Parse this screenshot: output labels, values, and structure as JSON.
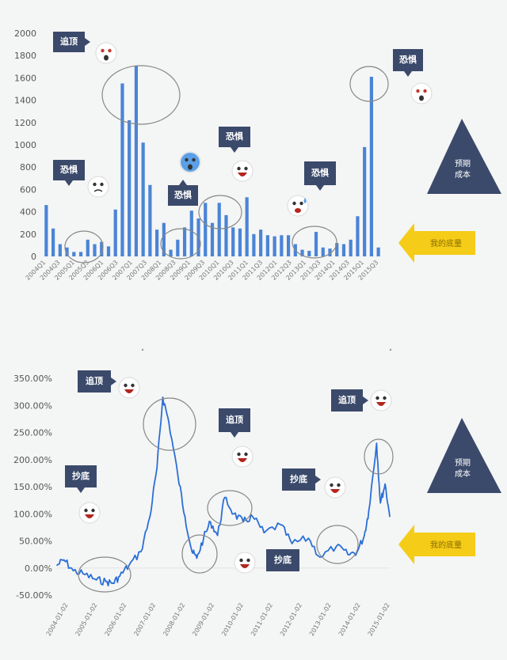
{
  "chart_data": [
    {
      "type": "bar",
      "ylim": [
        0,
        2000
      ],
      "yticks": [
        "2000",
        "1800",
        "1600",
        "1400",
        "1200",
        "1000",
        "800",
        "600",
        "400",
        "200",
        "0"
      ],
      "xticklabels": [
        "2004Q1",
        "2004Q3",
        "2005Q1",
        "2005Q3",
        "2006Q1",
        "2006Q3",
        "2007Q1",
        "2007Q3",
        "2008Q1",
        "2008Q3",
        "2009Q1",
        "2009Q3",
        "2010Q1",
        "2010Q3",
        "2011Q1",
        "2011Q3",
        "2012Q1",
        "2012Q3",
        "2013Q1",
        "2013Q3",
        "2014Q1",
        "2014Q3",
        "2015Q1",
        "2015Q3"
      ],
      "values": [
        460,
        250,
        110,
        80,
        40,
        40,
        150,
        110,
        130,
        90,
        420,
        1550,
        1220,
        1710,
        1020,
        640,
        240,
        300,
        60,
        150,
        260,
        410,
        340,
        480,
        300,
        480,
        370,
        260,
        250,
        530,
        200,
        240,
        190,
        180,
        190,
        190,
        110,
        60,
        50,
        220,
        80,
        70,
        120,
        110,
        150,
        360,
        980,
        1610,
        80
      ],
      "color": "#4a84d6",
      "annotations": [
        {
          "label": "追顶",
          "emoji": "shocked-face"
        },
        {
          "label": "恐惧",
          "emoji": "sad-face"
        },
        {
          "label": "恐惧",
          "emoji": "crying-face"
        },
        {
          "label": "恐惧",
          "emoji": "screaming-face"
        },
        {
          "label": "恐惧",
          "emoji": "sweating-face"
        },
        {
          "label": "恐惧",
          "emoji": "shocked-face"
        }
      ],
      "side_shapes": {
        "triangle_text": "预期\n成本",
        "arrow_text": "我的底量"
      }
    },
    {
      "type": "line",
      "ylim": [
        -0.5,
        3.5
      ],
      "yticks": [
        "350.00%",
        "300.00%",
        "250.00%",
        "200.00%",
        "150.00%",
        "100.00%",
        "50.00%",
        "0.00%",
        "-50.00%"
      ],
      "xticklabels": [
        "2004-01-02",
        "2005-01-02",
        "2006-01-02",
        "2007-01-02",
        "2008-01-02",
        "2009-01-02",
        "2010-01-02",
        "2011-01-02",
        "2012-01-02",
        "2013-01-02",
        "2014-01-02",
        "2015-01-02"
      ],
      "series": [
        {
          "x": [
            "2004-01-02",
            "2004-04-01",
            "2004-08-01",
            "2005-01-02",
            "2005-06-01",
            "2005-10-01",
            "2006-01-02",
            "2006-04-01",
            "2006-08-01",
            "2007-01-02",
            "2007-05-01",
            "2007-08-01",
            "2007-10-16",
            "2008-01-02",
            "2008-05-01",
            "2008-08-01",
            "2008-11-01",
            "2009-01-02",
            "2009-04-01",
            "2009-07-01",
            "2009-10-01",
            "2010-01-02",
            "2010-05-01",
            "2010-09-01",
            "2011-01-02",
            "2011-06-01",
            "2012-01-02",
            "2012-06-01",
            "2013-01-02",
            "2013-06-01",
            "2014-01-02",
            "2014-06-01",
            "2014-10-01",
            "2015-01-02",
            "2015-03-01",
            "2015-06-12",
            "2015-08-01",
            "2015-10-01",
            "2015-12-01"
          ],
          "y": [
            0.05,
            0.15,
            -0.05,
            -0.12,
            -0.22,
            -0.25,
            -0.28,
            -0.15,
            0.05,
            0.3,
            0.95,
            1.85,
            3.15,
            2.7,
            1.7,
            0.95,
            0.3,
            0.18,
            0.55,
            0.85,
            0.6,
            1.3,
            1.0,
            0.85,
            0.95,
            0.65,
            0.8,
            0.45,
            0.55,
            0.2,
            0.4,
            0.25,
            0.3,
            0.6,
            1.05,
            2.3,
            1.2,
            1.55,
            0.95
          ]
        }
      ],
      "color": "#2b6fd6",
      "annotations": [
        {
          "label": "追顶",
          "emoji": "laughing-face"
        },
        {
          "label": "抄底",
          "emoji": "laughing-face"
        },
        {
          "label": "追顶",
          "emoji": "laughing-face"
        },
        {
          "label": "抄底",
          "emoji": "laughing-face"
        },
        {
          "label": "抄底",
          "emoji": "laughing-face"
        },
        {
          "label": "追顶",
          "emoji": "laughing-face"
        }
      ],
      "side_shapes": {
        "triangle_text": "预期\n成本",
        "arrow_text": "我的底量"
      }
    }
  ]
}
